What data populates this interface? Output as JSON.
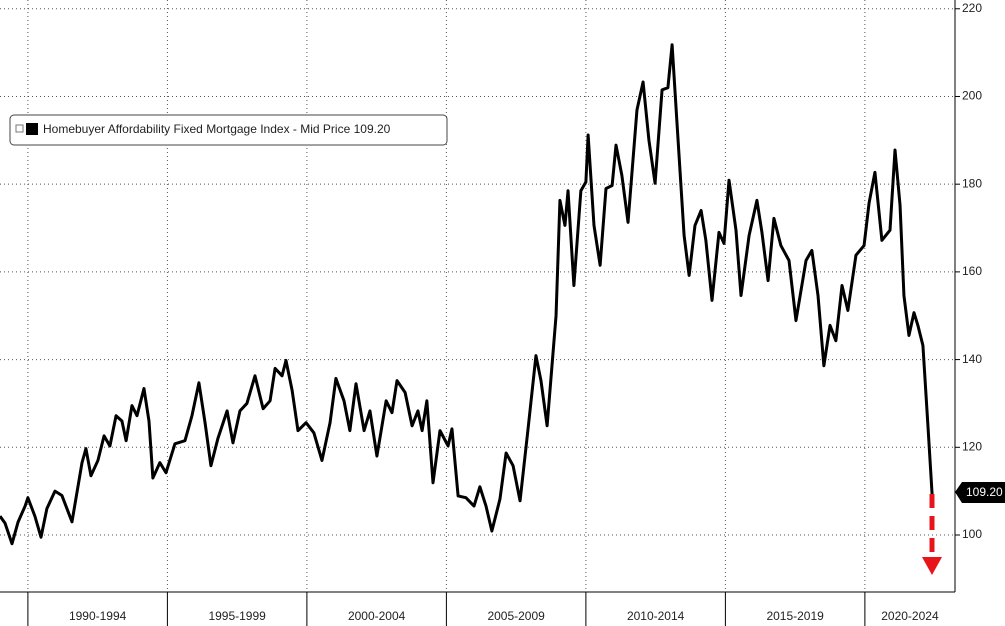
{
  "chart_data": {
    "type": "line",
    "x_period_labels": [
      "1990-1994",
      "1995-1999",
      "2000-2004",
      "2005-2009",
      "2010-2014",
      "2015-2019",
      "2020-2024"
    ],
    "xlim": [
      1989,
      2023.23
    ],
    "xticks": [
      1990,
      1995,
      2000,
      2005,
      2010,
      2015,
      2020
    ],
    "ylim": [
      87,
      222
    ],
    "yticks": [
      100,
      120,
      140,
      160,
      180,
      200,
      220
    ],
    "grid": true,
    "series": [
      {
        "name": "Homebuyer Affordability Fixed Mortgage Index - Mid Price",
        "color": "#000000",
        "last_value_label": "109.20",
        "x": [
          1989,
          1989.18,
          1989.43,
          1989.65,
          1989.9,
          1990,
          1990.25,
          1990.47,
          1990.68,
          1990.97,
          1991.22,
          1991.58,
          1991.94,
          1992.08,
          1992.26,
          1992.51,
          1992.73,
          1992.94,
          1993.16,
          1993.37,
          1993.52,
          1993.73,
          1993.91,
          1994.16,
          1994.34,
          1994.48,
          1994.73,
          1994.95,
          1995.27,
          1995.63,
          1995.88,
          1996.13,
          1996.35,
          1996.56,
          1996.81,
          1997.14,
          1997.35,
          1997.6,
          1997.85,
          1998.14,
          1998.43,
          1998.68,
          1998.86,
          1999.11,
          1999.25,
          1999.47,
          1999.68,
          1999.97,
          2000.25,
          2000.54,
          2000.83,
          2001.04,
          2001.33,
          2001.54,
          2001.76,
          2002.05,
          2002.26,
          2002.51,
          2002.84,
          2003.05,
          2003.23,
          2003.52,
          2003.77,
          2003.98,
          2004.13,
          2004.3,
          2004.52,
          2004.77,
          2005.06,
          2005.2,
          2005.42,
          2005.7,
          2005.99,
          2006.2,
          2006.42,
          2006.63,
          2006.92,
          2007.14,
          2007.39,
          2007.64,
          2007.92,
          2008.21,
          2008.39,
          2008.61,
          2008.93,
          2009.07,
          2009.25,
          2009.36,
          2009.57,
          2009.82,
          2010,
          2010.08,
          2010.29,
          2010.51,
          2010.72,
          2010.94,
          2011.08,
          2011.29,
          2011.51,
          2011.83,
          2012.05,
          2012.26,
          2012.48,
          2012.73,
          2012.94,
          2013.09,
          2013.27,
          2013.52,
          2013.7,
          2013.91,
          2014.13,
          2014.3,
          2014.52,
          2014.77,
          2014.95,
          2015.13,
          2015.38,
          2015.56,
          2015.85,
          2016.13,
          2016.31,
          2016.53,
          2016.74,
          2016.99,
          2017.28,
          2017.53,
          2017.89,
          2018.1,
          2018.32,
          2018.53,
          2018.75,
          2018.96,
          2019.18,
          2019.39,
          2019.68,
          2019.97,
          2020.15,
          2020.36,
          2020.61,
          2020.9,
          2021.08,
          2021.26,
          2021.4,
          2021.58,
          2021.76,
          2021.9,
          2022.08,
          2022.26,
          2022.41
        ],
        "values": [
          104.3,
          102.7,
          98,
          103,
          106.6,
          108.5,
          104.3,
          99.5,
          106,
          110,
          109,
          103,
          116.5,
          119.7,
          113.5,
          117,
          122.6,
          120.3,
          127.2,
          126,
          121.5,
          129.5,
          127.2,
          133.4,
          126,
          113,
          116.5,
          114.2,
          120.8,
          121.5,
          127.2,
          134.7,
          125.6,
          115.8,
          122,
          128.3,
          121,
          128.3,
          130,
          136.3,
          128.8,
          130.6,
          138,
          136.3,
          139.8,
          133,
          123.8,
          125.6,
          123.3,
          117,
          125.6,
          135.7,
          130.6,
          123.8,
          134.5,
          123.8,
          128.3,
          118,
          130.6,
          127.9,
          135.2,
          132.5,
          124.9,
          128.3,
          123.8,
          130.6,
          111.9,
          123.8,
          120.3,
          124.2,
          108.9,
          108.5,
          106.6,
          111,
          106.6,
          100.9,
          108.2,
          118.7,
          115.8,
          107.8,
          123.8,
          140.9,
          135.2,
          124.9,
          150,
          176.3,
          170.6,
          178.5,
          156.9,
          178.5,
          180.5,
          191.2,
          170.6,
          161.5,
          179,
          179.7,
          188.9,
          182,
          171.3,
          196.9,
          203.3,
          190,
          180.2,
          201.5,
          202,
          211.8,
          193.5,
          168.3,
          159.2,
          170.6,
          174,
          167.2,
          153.5,
          169,
          166.5,
          180.9,
          169.5,
          154.6,
          168.3,
          176.3,
          169,
          158,
          172.2,
          166,
          162.6,
          148.9,
          162.6,
          164.9,
          154.6,
          138.6,
          147.8,
          144.3,
          156.9,
          151.2,
          163.8,
          166,
          175.7,
          182.7,
          167.2,
          169.5,
          187.8,
          175.2,
          154.6,
          145.5,
          150.7,
          147.8,
          143.2,
          124.9,
          109.2
        ]
      }
    ]
  }
}
